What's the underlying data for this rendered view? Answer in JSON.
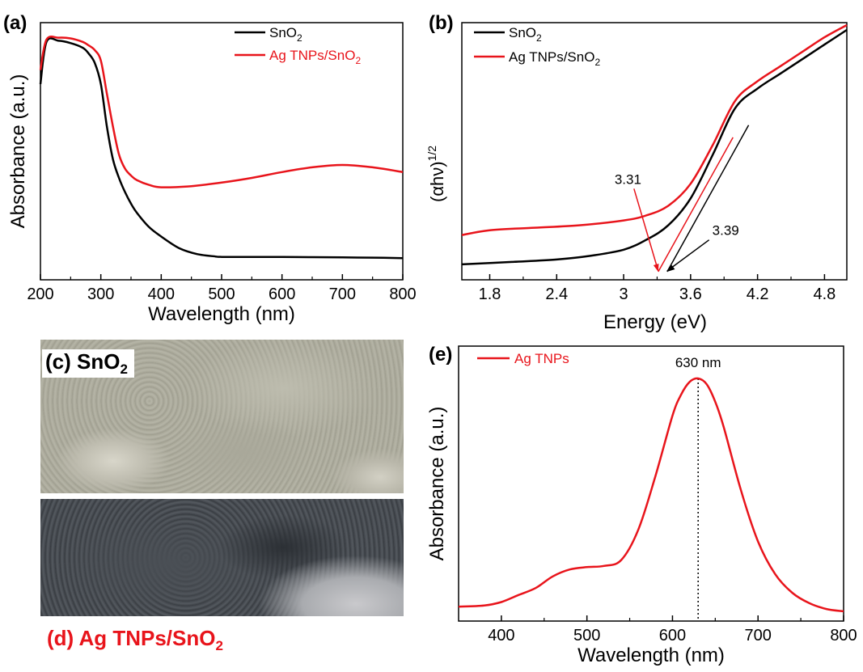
{
  "chart_data": [
    {
      "panel": "(a)",
      "type": "line",
      "xlabel": "Wavelength (nm)",
      "ylabel": "Absorbance (a.u.)",
      "xlim": [
        200,
        800
      ],
      "ylim": [
        0,
        1
      ],
      "xticks": [
        200,
        300,
        400,
        500,
        600,
        700,
        800
      ],
      "grid": false,
      "legend_position": "top-right",
      "series": [
        {
          "name": "SnO2",
          "color": "#000000",
          "x": [
            200,
            210,
            230,
            250,
            270,
            280,
            290,
            300,
            310,
            320,
            330,
            340,
            350,
            360,
            380,
            400,
            430,
            460,
            490,
            500,
            550,
            600,
            650,
            700,
            750,
            800
          ],
          "y": [
            0.8,
            0.98,
            0.985,
            0.975,
            0.955,
            0.93,
            0.89,
            0.8,
            0.62,
            0.48,
            0.4,
            0.34,
            0.29,
            0.25,
            0.19,
            0.15,
            0.1,
            0.075,
            0.065,
            0.063,
            0.063,
            0.063,
            0.062,
            0.061,
            0.06,
            0.058
          ]
        },
        {
          "name": "Ag TNPs/SnO2",
          "color": "#e8141b",
          "x": [
            200,
            210,
            230,
            250,
            270,
            280,
            290,
            300,
            310,
            320,
            330,
            340,
            350,
            360,
            380,
            400,
            450,
            500,
            550,
            600,
            650,
            700,
            750,
            800
          ],
          "y": [
            0.86,
            0.99,
            0.998,
            0.995,
            0.98,
            0.965,
            0.945,
            0.9,
            0.76,
            0.62,
            0.5,
            0.44,
            0.41,
            0.39,
            0.37,
            0.36,
            0.365,
            0.38,
            0.4,
            0.425,
            0.445,
            0.455,
            0.445,
            0.425
          ]
        }
      ]
    },
    {
      "panel": "(b)",
      "type": "line",
      "xlabel": "Energy (eV)",
      "ylabel_main": "(αhν)",
      "ylabel_sup": "1/2",
      "xlim": [
        1.55,
        5.0
      ],
      "ylim": [
        0,
        1
      ],
      "xticks": [
        1.8,
        2.4,
        3.0,
        3.6,
        4.2,
        4.8
      ],
      "grid": false,
      "legend_position": "top-left",
      "series": [
        {
          "name": "SnO2",
          "color": "#000000",
          "x": [
            1.55,
            2.0,
            2.4,
            2.7,
            3.0,
            3.2,
            3.4,
            3.6,
            3.8,
            4.0,
            4.2,
            4.4,
            4.6,
            4.8,
            5.0
          ],
          "y": [
            0.03,
            0.04,
            0.05,
            0.065,
            0.09,
            0.13,
            0.19,
            0.3,
            0.48,
            0.67,
            0.75,
            0.81,
            0.87,
            0.93,
            0.99
          ]
        },
        {
          "name": "Ag TNPs/SnO2",
          "color": "#e8141b",
          "x": [
            1.55,
            1.8,
            2.2,
            2.6,
            3.0,
            3.2,
            3.4,
            3.6,
            3.8,
            4.0,
            4.2,
            4.4,
            4.6,
            4.8,
            5.0
          ],
          "y": [
            0.15,
            0.17,
            0.18,
            0.19,
            0.21,
            0.23,
            0.27,
            0.36,
            0.52,
            0.7,
            0.78,
            0.84,
            0.9,
            0.96,
            1.01
          ]
        }
      ],
      "tangents": [
        {
          "color": "#000000",
          "x": [
            3.39,
            4.12
          ],
          "y": [
            0.0,
            0.6
          ]
        },
        {
          "color": "#e8141b",
          "x": [
            3.31,
            3.98
          ],
          "y": [
            0.0,
            0.55
          ]
        }
      ],
      "annotations": [
        {
          "text": "3.31",
          "color": "#e8141b",
          "point": [
            3.31,
            0.0
          ],
          "label_at": [
            3.02,
            0.36
          ]
        },
        {
          "text": "3.39",
          "color": "#000000",
          "point": [
            3.39,
            0.0
          ],
          "label_at": [
            3.78,
            0.15
          ]
        }
      ]
    },
    {
      "panel": "(e)",
      "type": "line",
      "xlabel": "Wavelength (nm)",
      "ylabel": "Absorbance (a.u.)",
      "xlim": [
        350,
        800
      ],
      "ylim": [
        0,
        1
      ],
      "xticks": [
        400,
        500,
        600,
        700,
        800
      ],
      "grid": false,
      "legend_position": "top-left",
      "series": [
        {
          "name": "Ag TNPs",
          "color": "#e8141b",
          "x": [
            350,
            380,
            400,
            420,
            440,
            460,
            480,
            500,
            520,
            540,
            560,
            580,
            600,
            610,
            620,
            630,
            640,
            650,
            660,
            680,
            700,
            720,
            740,
            760,
            780,
            800
          ],
          "y": [
            0.02,
            0.025,
            0.04,
            0.07,
            0.1,
            0.15,
            0.18,
            0.19,
            0.195,
            0.22,
            0.35,
            0.58,
            0.84,
            0.93,
            0.985,
            1.0,
            0.975,
            0.9,
            0.79,
            0.52,
            0.3,
            0.16,
            0.08,
            0.035,
            0.01,
            0.0
          ]
        }
      ],
      "peak": {
        "x": 630,
        "label": "630 nm"
      }
    }
  ],
  "photos": [
    {
      "panel_label": "(c) SnO",
      "sub": "2"
    },
    {
      "panel_label": "(d) Ag TNPs/SnO",
      "sub": "2"
    }
  ]
}
